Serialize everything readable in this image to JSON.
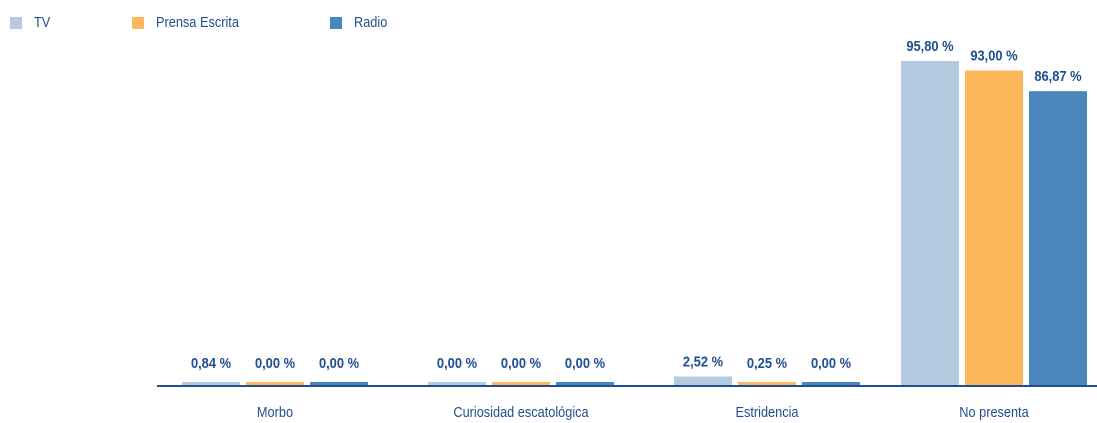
{
  "chart_data": {
    "type": "bar",
    "categories": [
      "Morbo",
      "Curiosidad escatológica",
      "Estridencia",
      "No presenta"
    ],
    "series": [
      {
        "name": "TV",
        "color": "#b4cbe1",
        "values": [
          0.84,
          0.0,
          2.52,
          95.8
        ],
        "labels": [
          "0,84 %",
          "0,00 %",
          "2,52 %",
          "95,80 %"
        ]
      },
      {
        "name": "Prensa Escrita",
        "color": "#fdb85b",
        "values": [
          0.0,
          0.0,
          0.25,
          93.0
        ],
        "labels": [
          "0,00 %",
          "0,00 %",
          "0,25 %",
          "93,00 %"
        ]
      },
      {
        "name": "Radio",
        "color": "#4a86bc",
        "values": [
          0.0,
          0.0,
          0.0,
          86.87
        ],
        "labels": [
          "0,00 %",
          "0,00 %",
          "0,00 %",
          "86,87 %"
        ]
      }
    ],
    "ylim": [
      0,
      100
    ],
    "grid": false,
    "legend_position": "top-left",
    "label_color": "#1f4f8f",
    "axis_color": "#1f4f8f"
  }
}
